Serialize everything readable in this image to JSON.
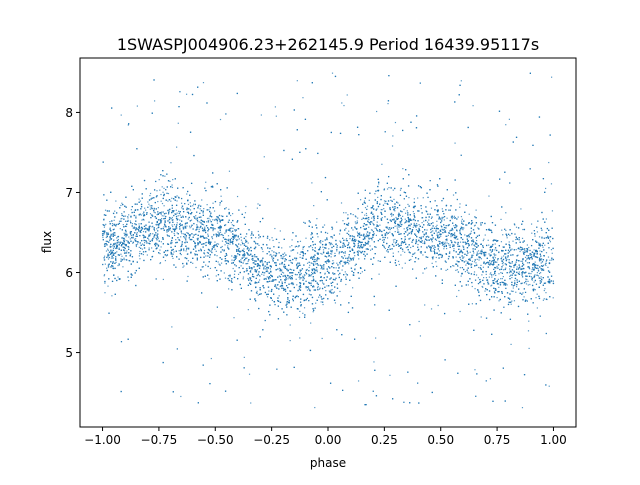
{
  "chart_data": {
    "type": "scatter",
    "title": "1SWASPJ004906.23+262145.9 Period 16439.95117s",
    "xlabel": "phase",
    "ylabel": "flux",
    "xlim": [
      -1.1,
      1.1
    ],
    "ylim": [
      4.07,
      8.68
    ],
    "xticks": [
      -1.0,
      -0.75,
      -0.5,
      -0.25,
      0.0,
      0.25,
      0.5,
      0.75,
      1.0
    ],
    "xtick_labels": [
      "−1.00",
      "−0.75",
      "−0.50",
      "−0.25",
      "0.00",
      "0.25",
      "0.50",
      "0.75",
      "1.00"
    ],
    "yticks": [
      5,
      6,
      7,
      8
    ],
    "ytick_labels": [
      "5",
      "6",
      "7",
      "8"
    ],
    "grid": false,
    "legend": "none",
    "marker_color": "#1f77b4",
    "series": [
      {
        "trend_description_x": [
          -1.0,
          -0.75,
          -0.5,
          -0.25,
          -0.2,
          0.0,
          0.25,
          0.3,
          0.5,
          0.75,
          0.8,
          1.0
        ],
        "trend_mean_flux": [
          6.3,
          6.62,
          6.45,
          6.0,
          5.95,
          6.1,
          6.62,
          6.64,
          6.45,
          6.1,
          6.05,
          6.1
        ],
        "core_scatter": 0.3,
        "outlier_range": [
          4.3,
          8.5
        ],
        "x_range": [
          -1.0,
          1.0
        ]
      }
    ]
  }
}
